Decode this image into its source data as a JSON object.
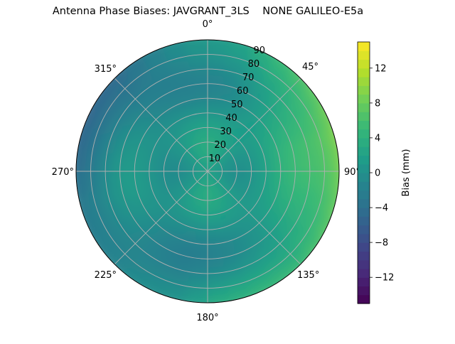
{
  "chart_data": {
    "type": "polar-heatmap",
    "title": "Antenna Phase Biases: JAVGRANT_3LS    NONE GALILEO-E5a",
    "azimuth_ticks": [
      "0°",
      "45°",
      "90°",
      "135°",
      "180°",
      "225°",
      "270°",
      "315°"
    ],
    "radial_ticks": [
      "10",
      "20",
      "30",
      "40",
      "50",
      "60",
      "70",
      "80",
      "90"
    ],
    "radial_range": [
      0,
      90
    ],
    "grid": true,
    "colorbar": {
      "label": "Bias (mm)",
      "range": [
        -15,
        15
      ],
      "ticks": [
        "12",
        "8",
        "4",
        "0",
        "−4",
        "−8",
        "−12"
      ],
      "tick_values": [
        12,
        8,
        4,
        0,
        -4,
        -8,
        -12
      ],
      "colormap": "viridis",
      "placement": "right"
    },
    "colors": {
      "viridis": [
        "#440154",
        "#482878",
        "#3e4989",
        "#31688e",
        "#26828e",
        "#1f9e89",
        "#35b779",
        "#6ece58",
        "#b5de2b",
        "#fde725"
      ]
    }
  }
}
